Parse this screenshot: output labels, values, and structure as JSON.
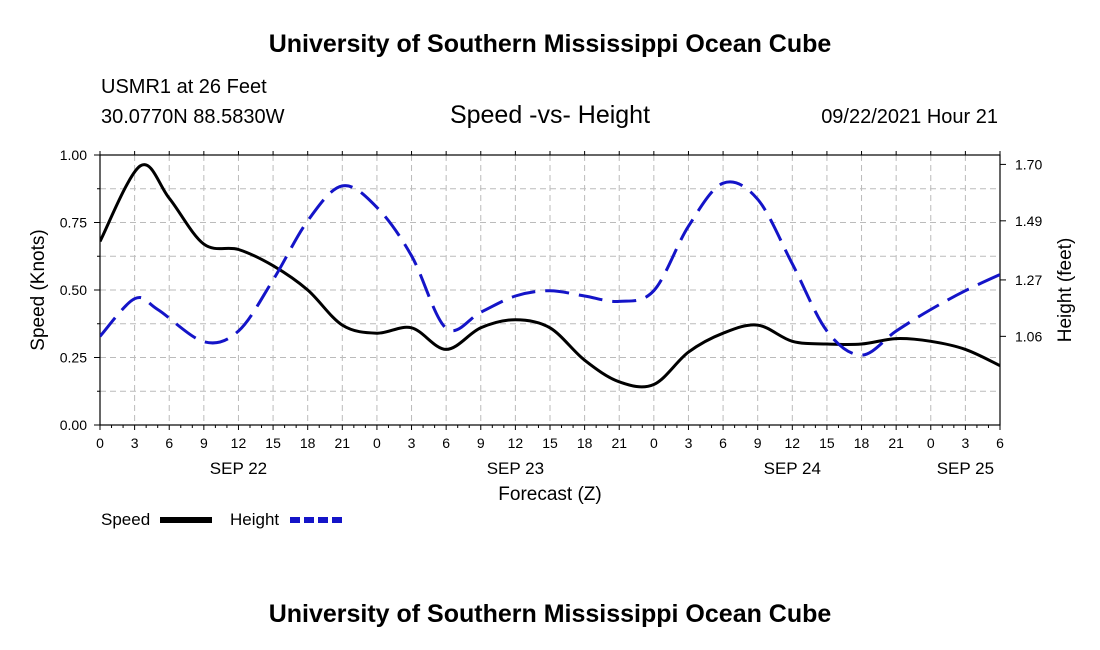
{
  "header": {
    "title": "University of Southern Mississippi Ocean Cube",
    "station": "USMR1 at 26 Feet",
    "coords": "30.0770N  88.5830W",
    "chart_title": "Speed -vs- Height",
    "datetime": "09/22/2021 Hour 21"
  },
  "footer": {
    "title": "University of Southern Mississippi Ocean Cube"
  },
  "colors": {
    "speed": "#000000",
    "height": "#1414c8",
    "grid": "#bbbbbb"
  },
  "chart_data": {
    "type": "line",
    "title": "Speed -vs- Height",
    "xlabel": "Forecast (Z)",
    "ylabel_left": "Speed (Knots)",
    "ylabel_right": "Height (feet)",
    "x_hours_range": [
      0,
      78
    ],
    "x_tick_labels": [
      "0",
      "3",
      "6",
      "9",
      "12",
      "15",
      "18",
      "21",
      "0",
      "3",
      "6",
      "9",
      "12",
      "15",
      "18",
      "21",
      "0",
      "3",
      "6",
      "9",
      "12",
      "15",
      "18",
      "21",
      "0",
      "3",
      "6"
    ],
    "date_labels": [
      {
        "label": "SEP 22",
        "hour": 12
      },
      {
        "label": "SEP 23",
        "hour": 36
      },
      {
        "label": "SEP 24",
        "hour": 60
      },
      {
        "label": "SEP 25",
        "hour": 75
      }
    ],
    "ylim_left": [
      0,
      1.0
    ],
    "yticks_left": [
      "0.00",
      "0.25",
      "0.50",
      "0.75",
      "1.00"
    ],
    "ylim_right": [
      0.73,
      1.735
    ],
    "yticks_right": [
      {
        "label": "1.06",
        "value": 1.06
      },
      {
        "label": "1.27",
        "value": 1.27
      },
      {
        "label": "1.49",
        "value": 1.49
      },
      {
        "label": "1.70",
        "value": 1.7
      }
    ],
    "legend": [
      {
        "name": "Speed",
        "style": "solid"
      },
      {
        "name": "Height",
        "style": "dashed"
      }
    ],
    "series": [
      {
        "name": "Speed",
        "axis": "left",
        "x": [
          0,
          3.5,
          6,
          9,
          12,
          15,
          18,
          21,
          24,
          27,
          30,
          33,
          36,
          39,
          42,
          45,
          48,
          51,
          54,
          57,
          60,
          63,
          66,
          69,
          72,
          75,
          78
        ],
        "values": [
          0.68,
          0.96,
          0.84,
          0.67,
          0.65,
          0.59,
          0.5,
          0.37,
          0.34,
          0.36,
          0.28,
          0.36,
          0.39,
          0.36,
          0.24,
          0.16,
          0.15,
          0.27,
          0.34,
          0.37,
          0.31,
          0.3,
          0.3,
          0.32,
          0.31,
          0.28,
          0.22
        ]
      },
      {
        "name": "Height",
        "axis": "right",
        "x": [
          0,
          3,
          5,
          9,
          12,
          15,
          18,
          21,
          24,
          27,
          30,
          33,
          36,
          39,
          42,
          45,
          48,
          51,
          54,
          57,
          60,
          63,
          66,
          69,
          72,
          75,
          78
        ],
        "values": [
          1.06,
          1.2,
          1.16,
          1.04,
          1.08,
          1.27,
          1.49,
          1.62,
          1.54,
          1.36,
          1.09,
          1.15,
          1.21,
          1.23,
          1.21,
          1.19,
          1.23,
          1.47,
          1.63,
          1.57,
          1.33,
          1.08,
          0.99,
          1.08,
          1.16,
          1.23,
          1.29
        ]
      }
    ]
  }
}
